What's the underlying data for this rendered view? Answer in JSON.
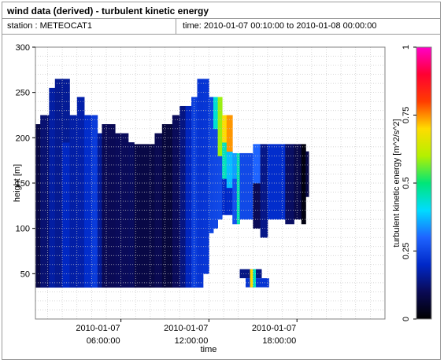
{
  "header": {
    "title": "wind data (derived) - turbulent kinetic energy",
    "station": "station : METEOCAT1",
    "period": "time: 2010-01-07 00:10:00 to 2010-01-08 00:00:00"
  },
  "chart_data": {
    "type": "heatmap",
    "xlabel": "time",
    "ylabel": "height [m]",
    "colorbar_label": "turbulent kinetic energy [m^2/s^2]",
    "x_ticks": [
      {
        "hour": 6,
        "line1": "2010-01-07",
        "line2": "06:00:00"
      },
      {
        "hour": 12,
        "line1": "2010-01-07",
        "line2": "12:00:00"
      },
      {
        "hour": 18,
        "line1": "2010-01-07",
        "line2": "18:00:00"
      }
    ],
    "xlim_hours": [
      0.17,
      24
    ],
    "y_ticks": [
      50,
      100,
      150,
      200,
      250,
      300
    ],
    "ylim": [
      0,
      300
    ],
    "colorbar_ticks": [
      "0",
      "0.25",
      "0.5",
      "0.75",
      "1"
    ],
    "clim": [
      0,
      1
    ],
    "grid": true,
    "colormap": [
      "#000000",
      "#0a0a55",
      "#0028c8",
      "#1e64ff",
      "#00dcff",
      "#00e678",
      "#b4f000",
      "#ffdc00",
      "#ff3c00",
      "#ff0032",
      "#ff00c8"
    ],
    "bin_height_m": 10,
    "columns": [
      {
        "t0": 0.17,
        "t1": 0.5,
        "bot": 35,
        "top": 215,
        "segs": [
          [
            35,
            215,
            0.08
          ]
        ]
      },
      {
        "t0": 0.5,
        "t1": 1.1,
        "bot": 35,
        "top": 225,
        "segs": [
          [
            35,
            225,
            0.1
          ]
        ]
      },
      {
        "t0": 1.1,
        "t1": 1.5,
        "bot": 35,
        "top": 255,
        "segs": [
          [
            35,
            255,
            0.12
          ]
        ]
      },
      {
        "t0": 1.5,
        "t1": 2.0,
        "bot": 35,
        "top": 265,
        "segs": [
          [
            35,
            265,
            0.14
          ]
        ]
      },
      {
        "t0": 2.0,
        "t1": 2.5,
        "bot": 35,
        "top": 265,
        "segs": [
          [
            35,
            200,
            0.16
          ],
          [
            200,
            265,
            0.12
          ]
        ]
      },
      {
        "t0": 2.5,
        "t1": 3.0,
        "bot": 35,
        "top": 225,
        "segs": [
          [
            35,
            225,
            0.17
          ]
        ]
      },
      {
        "t0": 3.0,
        "t1": 3.5,
        "bot": 35,
        "top": 245,
        "segs": [
          [
            35,
            245,
            0.15
          ]
        ]
      },
      {
        "t0": 3.5,
        "t1": 4.0,
        "bot": 35,
        "top": 225,
        "segs": [
          [
            35,
            225,
            0.16
          ]
        ]
      },
      {
        "t0": 4.0,
        "t1": 4.4,
        "bot": 35,
        "top": 225,
        "segs": [
          [
            35,
            225,
            0.22
          ]
        ]
      },
      {
        "t0": 4.4,
        "t1": 4.7,
        "bot": 35,
        "top": 205,
        "segs": [
          [
            35,
            205,
            0.12
          ]
        ]
      },
      {
        "t0": 4.7,
        "t1": 5.6,
        "bot": 35,
        "top": 215,
        "segs": [
          [
            35,
            215,
            0.1
          ]
        ]
      },
      {
        "t0": 5.6,
        "t1": 6.5,
        "bot": 35,
        "top": 205,
        "segs": [
          [
            35,
            205,
            0.08
          ]
        ]
      },
      {
        "t0": 6.5,
        "t1": 6.9,
        "bot": 35,
        "top": 195,
        "segs": [
          [
            35,
            195,
            0.06
          ]
        ]
      },
      {
        "t0": 6.9,
        "t1": 8.3,
        "bot": 35,
        "top": 193,
        "segs": [
          [
            35,
            193,
            0.07
          ]
        ]
      },
      {
        "t0": 8.3,
        "t1": 8.8,
        "bot": 35,
        "top": 205,
        "segs": [
          [
            35,
            205,
            0.06
          ]
        ]
      },
      {
        "t0": 8.8,
        "t1": 9.5,
        "bot": 35,
        "top": 215,
        "segs": [
          [
            35,
            215,
            0.07
          ]
        ]
      },
      {
        "t0": 9.5,
        "t1": 10.0,
        "bot": 35,
        "top": 225,
        "segs": [
          [
            35,
            225,
            0.08
          ]
        ]
      },
      {
        "t0": 10.0,
        "t1": 10.4,
        "bot": 35,
        "top": 235,
        "segs": [
          [
            35,
            235,
            0.09
          ]
        ]
      },
      {
        "t0": 10.4,
        "t1": 10.8,
        "bot": 35,
        "top": 235,
        "segs": [
          [
            35,
            235,
            0.18
          ]
        ]
      },
      {
        "t0": 10.8,
        "t1": 11.2,
        "bot": 35,
        "top": 245,
        "segs": [
          [
            35,
            245,
            0.2
          ]
        ]
      },
      {
        "t0": 11.2,
        "t1": 11.6,
        "bot": 35,
        "top": 265,
        "segs": [
          [
            35,
            265,
            0.22
          ]
        ]
      },
      {
        "t0": 11.6,
        "t1": 12.0,
        "bot": 50,
        "top": 265,
        "segs": [
          [
            50,
            265,
            0.2
          ]
        ]
      },
      {
        "t0": 12.0,
        "t1": 12.3,
        "bot": 95,
        "top": 245,
        "segs": [
          [
            95,
            245,
            0.2
          ]
        ]
      },
      {
        "t0": 12.3,
        "t1": 12.6,
        "bot": 100,
        "top": 245,
        "segs": [
          [
            100,
            210,
            0.24
          ],
          [
            210,
            245,
            0.42
          ]
        ]
      },
      {
        "t0": 12.6,
        "t1": 12.9,
        "bot": 110,
        "top": 245,
        "segs": [
          [
            110,
            180,
            0.22
          ],
          [
            180,
            245,
            0.55
          ]
        ]
      },
      {
        "t0": 12.9,
        "t1": 13.2,
        "bot": 115,
        "top": 225,
        "segs": [
          [
            115,
            160,
            0.2
          ],
          [
            160,
            200,
            0.45
          ],
          [
            200,
            225,
            0.7
          ]
        ]
      },
      {
        "t0": 13.2,
        "t1": 13.6,
        "bot": 115,
        "top": 225,
        "segs": [
          [
            115,
            150,
            0.18
          ],
          [
            150,
            185,
            0.35
          ],
          [
            185,
            225,
            0.72
          ]
        ]
      },
      {
        "t0": 13.6,
        "t1": 13.9,
        "bot": 105,
        "top": 183,
        "segs": [
          [
            105,
            155,
            0.22
          ],
          [
            155,
            183,
            0.3
          ]
        ]
      },
      {
        "t0": 13.9,
        "t1": 14.1,
        "bot": 105,
        "top": 183,
        "segs": [
          [
            105,
            183,
            0.45
          ]
        ]
      },
      {
        "t0": 14.1,
        "t1": 15.0,
        "bot": 110,
        "top": 183,
        "segs": [
          [
            110,
            183,
            0.22
          ]
        ]
      },
      {
        "t0": 15.0,
        "t1": 15.5,
        "bot": 100,
        "top": 193,
        "segs": [
          [
            100,
            150,
            0.1
          ],
          [
            150,
            193,
            0.3
          ]
        ]
      },
      {
        "t0": 15.5,
        "t1": 16.0,
        "bot": 90,
        "top": 193,
        "segs": [
          [
            90,
            193,
            0.12
          ]
        ]
      },
      {
        "t0": 16.0,
        "t1": 17.2,
        "bot": 110,
        "top": 193,
        "segs": [
          [
            110,
            193,
            0.16
          ]
        ]
      },
      {
        "t0": 17.2,
        "t1": 17.8,
        "bot": 105,
        "top": 193,
        "segs": [
          [
            105,
            193,
            0.1
          ]
        ]
      },
      {
        "t0": 17.8,
        "t1": 18.3,
        "bot": 110,
        "top": 193,
        "segs": [
          [
            110,
            193,
            0.05
          ]
        ]
      },
      {
        "t0": 18.3,
        "t1": 18.6,
        "bot": 105,
        "top": 193,
        "segs": [
          [
            105,
            193,
            0.02
          ]
        ]
      },
      {
        "t0": 18.6,
        "t1": 18.8,
        "bot": 135,
        "top": 185,
        "segs": [
          [
            135,
            185,
            0.06
          ]
        ]
      }
    ],
    "patches": [
      {
        "t0": 14.1,
        "t1": 15.6,
        "bot": 45,
        "top": 55,
        "v": 0.14
      },
      {
        "t0": 14.5,
        "t1": 16.1,
        "bot": 35,
        "top": 45,
        "v": 0.22
      },
      {
        "t0": 14.8,
        "t1": 15.0,
        "bot": 35,
        "top": 55,
        "v": 0.7
      },
      {
        "t0": 15.0,
        "t1": 15.2,
        "bot": 35,
        "top": 55,
        "v": 0.45
      }
    ]
  }
}
